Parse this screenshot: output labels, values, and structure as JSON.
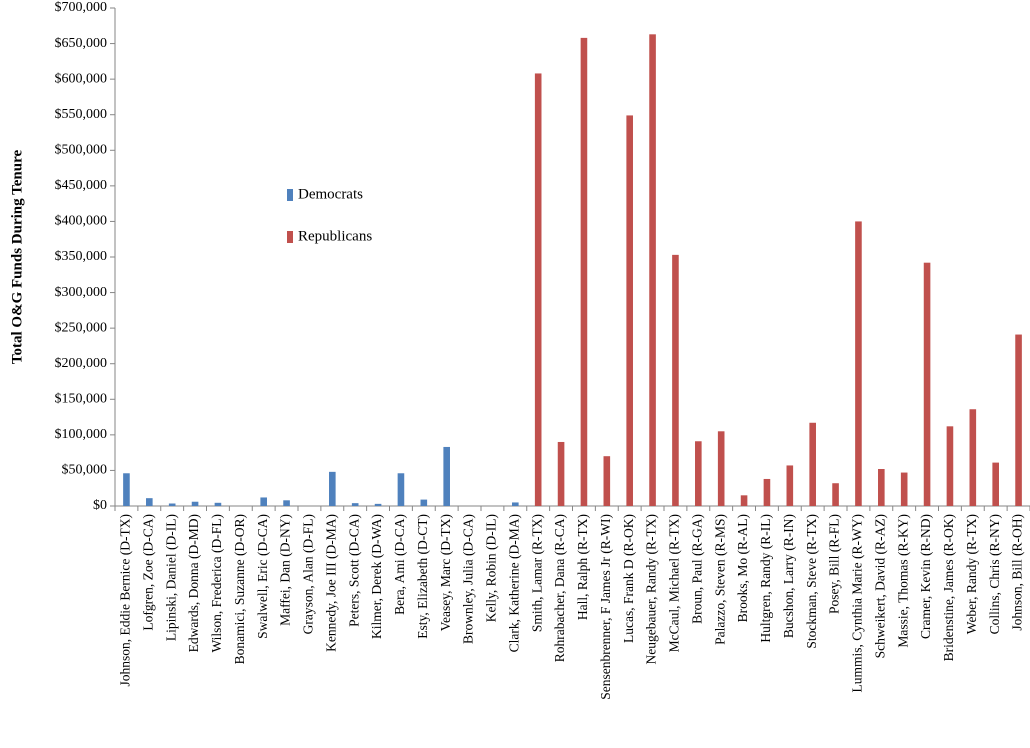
{
  "chart_data": {
    "type": "bar",
    "y_label": "Total O&G Funds During Tenure",
    "categories": [
      "Johnson, Eddie Bernice (D-TX)",
      "Lofgren, Zoe (D-CA)",
      "Lipinski, Daniel (D-IL)",
      "Edwards, Donna (D-MD)",
      "Wilson, Frederica (D-FL)",
      "Bonamici, Suzanne (D-OR)",
      "Swalwell, Eric (D-CA)",
      "Maffei, Dan (D-NY)",
      "Grayson, Alan (D-FL)",
      "Kennedy, Joe III (D-MA)",
      "Peters, Scott (D-CA)",
      "Kilmer, Derek (D-WA)",
      "Bera, Ami (D-CA)",
      "Esty, Elizabeth (D-CT)",
      "Veasey, Marc (D-TX)",
      "Brownley, Julia (D-CA)",
      "Kelly, Robin (D-IL)",
      "Clark, Katherine (D-MA)",
      "Smith, Lamar (R-TX)",
      "Rohrabacher, Dana (R-CA)",
      "Hall, Ralph (R-TX)",
      "Sensenbrenner, F James Jr (R-WI)",
      "Lucas, Frank D (R-OK)",
      "Neugebauer, Randy (R-TX)",
      "McCaul, Michael (R-TX)",
      "Broun, Paul (R-GA)",
      "Palazzo, Steven (R-MS)",
      "Brooks, Mo (R-AL)",
      "Hultgren, Randy (R-IL)",
      "Bucshon, Larry (R-IN)",
      "Stockman, Steve (R-TX)",
      "Posey, Bill (R-FL)",
      "Lummis, Cynthia Marie (R-WY)",
      "Schweikert, David (R-AZ)",
      "Massie, Thomas (R-KY)",
      "Cramer, Kevin (R-ND)",
      "Bridenstine, James (R-OK)",
      "Weber, Randy (R-TX)",
      "Collins, Chris (R-NY)",
      "Johnson, Bill (R-OH)"
    ],
    "series": [
      {
        "name": "Democrats",
        "color": "#4f81bd",
        "values": [
          46000,
          11000,
          3500,
          6000,
          4500,
          0,
          12000,
          8000,
          0,
          48000,
          4000,
          3000,
          46000,
          9000,
          83000,
          0,
          0,
          5000,
          null,
          null,
          null,
          null,
          null,
          null,
          null,
          null,
          null,
          null,
          null,
          null,
          null,
          null,
          null,
          null,
          null,
          null,
          null,
          null,
          null,
          null
        ]
      },
      {
        "name": "Republicans",
        "color": "#c0504d",
        "values": [
          null,
          null,
          null,
          null,
          null,
          null,
          null,
          null,
          null,
          null,
          null,
          null,
          null,
          null,
          null,
          null,
          null,
          null,
          608000,
          90000,
          658000,
          70000,
          549000,
          663000,
          353000,
          91000,
          105000,
          15000,
          38000,
          57000,
          117000,
          32000,
          400000,
          52000,
          47000,
          342000,
          112000,
          136000,
          61000,
          241000
        ]
      }
    ],
    "ylim": [
      0,
      700000
    ],
    "yticks": [
      {
        "value": 0,
        "label": "$0"
      },
      {
        "value": 50000,
        "label": "$50,000"
      },
      {
        "value": 100000,
        "label": "$100,000"
      },
      {
        "value": 150000,
        "label": "$150,000"
      },
      {
        "value": 200000,
        "label": "$200,000"
      },
      {
        "value": 250000,
        "label": "$250,000"
      },
      {
        "value": 300000,
        "label": "$300,000"
      },
      {
        "value": 350000,
        "label": "$350,000"
      },
      {
        "value": 400000,
        "label": "$400,000"
      },
      {
        "value": 450000,
        "label": "$450,000"
      },
      {
        "value": 500000,
        "label": "$500,000"
      },
      {
        "value": 550000,
        "label": "$550,000"
      },
      {
        "value": 600000,
        "label": "$600,000"
      },
      {
        "value": 650000,
        "label": "$650,000"
      },
      {
        "value": 700000,
        "label": "$700,000"
      }
    ],
    "grid": false
  }
}
